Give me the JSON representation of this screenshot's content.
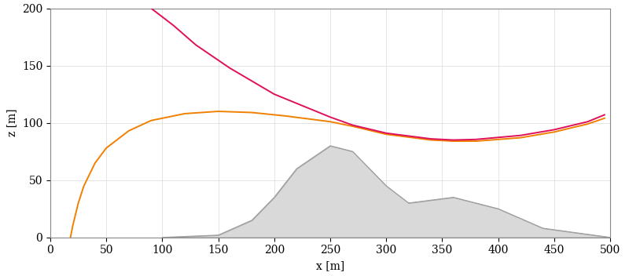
{
  "chart_data": {
    "type": "line",
    "xlabel": "x [m]",
    "ylabel": "z [m]",
    "xlim": [
      0,
      500
    ],
    "ylim": [
      0,
      200
    ],
    "xticks": [
      0,
      50,
      100,
      150,
      200,
      250,
      300,
      350,
      400,
      450,
      500
    ],
    "yticks": [
      0,
      50,
      100,
      150,
      200
    ],
    "grid": true,
    "series": [
      {
        "type": "area",
        "color": "#d9d9d9",
        "x": [
          100,
          150,
          180,
          200,
          220,
          250,
          270,
          300,
          320,
          360,
          400,
          440,
          500
        ],
        "values": [
          0,
          2,
          15,
          35,
          60,
          80,
          75,
          45,
          30,
          35,
          25,
          8,
          0
        ]
      },
      {
        "type": "line",
        "color": "#f08000",
        "x": [
          18,
          20,
          25,
          30,
          40,
          50,
          70,
          90,
          120,
          150,
          180,
          210,
          250,
          270,
          300,
          340,
          360,
          380,
          420,
          450,
          480,
          495
        ],
        "values": [
          0,
          10,
          30,
          45,
          65,
          78,
          93,
          102,
          108,
          110,
          109,
          106,
          101,
          97,
          90,
          85,
          84,
          84,
          87,
          92,
          99,
          104
        ]
      },
      {
        "type": "line",
        "color": "#e0105a",
        "x": [
          90,
          110,
          130,
          160,
          200,
          250,
          270,
          300,
          340,
          360,
          380,
          420,
          450,
          480,
          495
        ],
        "values": [
          200,
          185,
          168,
          148,
          125,
          105,
          98,
          91,
          86,
          85,
          85.5,
          89,
          94,
          101,
          107
        ]
      }
    ]
  }
}
